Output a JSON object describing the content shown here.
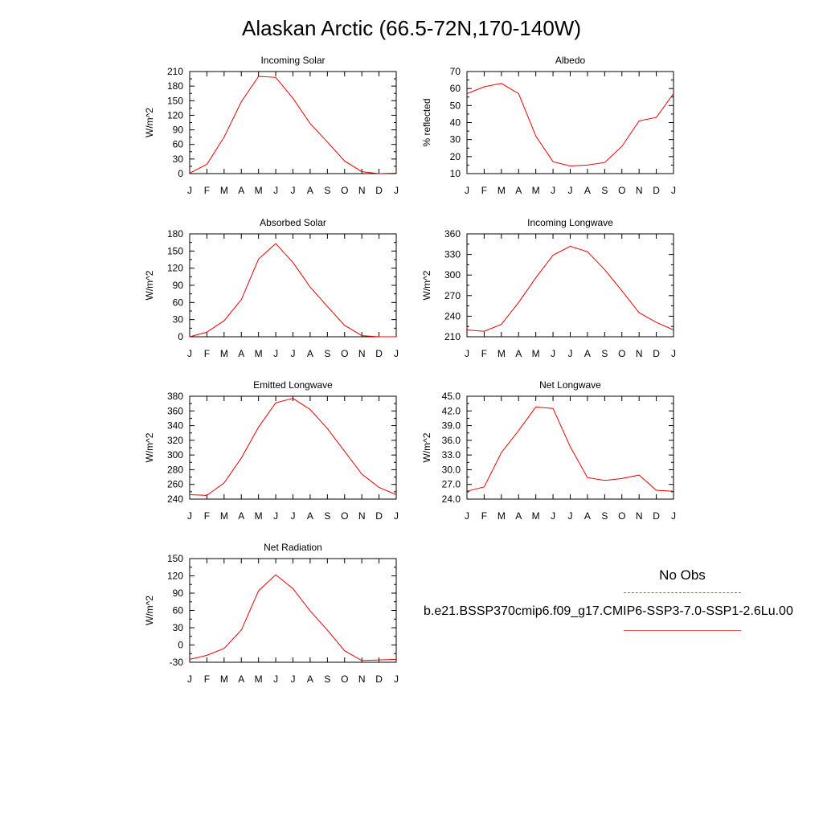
{
  "title": "Alaskan Arctic (66.5-72N,170-140W)",
  "legend": {
    "obs_label": "No Obs",
    "model_label": "b.e21.BSSP370cmip6.f09_g17.CMIP6-SSP3-7.0-SSP1-2.6Lu.00",
    "obs_color": "#6a6ae0",
    "model_color": "#ee0000"
  },
  "chart_data": [
    {
      "type": "line",
      "title": "Incoming Solar",
      "ylabel": "W/m^2",
      "categories": [
        "J",
        "F",
        "M",
        "A",
        "M",
        "J",
        "J",
        "A",
        "S",
        "O",
        "N",
        "D",
        "J"
      ],
      "ylim": [
        0,
        210
      ],
      "yticks": [
        "0",
        "30",
        "60",
        "90",
        "120",
        "150",
        "180",
        "210"
      ],
      "series": [
        {
          "values": [
            1,
            19,
            75,
            148,
            200,
            198,
            155,
            103,
            65,
            26,
            4,
            0,
            1
          ]
        }
      ]
    },
    {
      "type": "line",
      "title": "Albedo",
      "ylabel": "% reflected",
      "categories": [
        "J",
        "F",
        "M",
        "A",
        "M",
        "J",
        "J",
        "A",
        "S",
        "O",
        "N",
        "D",
        "J"
      ],
      "ylim": [
        10,
        70
      ],
      "yticks": [
        "10",
        "20",
        "30",
        "40",
        "50",
        "60",
        "70"
      ],
      "series": [
        {
          "values": [
            57,
            61,
            63,
            57,
            32,
            17,
            14.5,
            15,
            16.5,
            26,
            41,
            43,
            57
          ]
        }
      ]
    },
    {
      "type": "line",
      "title": "Absorbed Solar",
      "ylabel": "W/m^2",
      "categories": [
        "J",
        "F",
        "M",
        "A",
        "M",
        "J",
        "J",
        "A",
        "S",
        "O",
        "N",
        "D",
        "J"
      ],
      "ylim": [
        0,
        180
      ],
      "yticks": [
        "0",
        "30",
        "60",
        "90",
        "120",
        "150",
        "180"
      ],
      "series": [
        {
          "values": [
            0,
            8,
            28,
            65,
            136,
            163,
            130,
            87,
            53,
            20,
            2,
            0,
            0
          ]
        }
      ]
    },
    {
      "type": "line",
      "title": "Incoming Longwave",
      "ylabel": "W/m^2",
      "categories": [
        "J",
        "F",
        "M",
        "A",
        "M",
        "J",
        "J",
        "A",
        "S",
        "O",
        "N",
        "D",
        "J"
      ],
      "ylim": [
        210,
        360
      ],
      "yticks": [
        "210",
        "240",
        "270",
        "300",
        "330",
        "360"
      ],
      "series": [
        {
          "values": [
            220,
            218,
            228,
            260,
            296,
            329,
            342,
            334,
            308,
            277,
            245,
            231,
            220
          ]
        }
      ]
    },
    {
      "type": "line",
      "title": "Emitted Longwave",
      "ylabel": "W/m^2",
      "categories": [
        "J",
        "F",
        "M",
        "A",
        "M",
        "J",
        "J",
        "A",
        "S",
        "O",
        "N",
        "D",
        "J"
      ],
      "ylim": [
        240,
        380
      ],
      "yticks": [
        "240",
        "260",
        "280",
        "300",
        "320",
        "340",
        "360",
        "380"
      ],
      "series": [
        {
          "values": [
            246,
            245,
            262,
            296,
            338,
            371,
            377,
            362,
            336,
            305,
            274,
            256,
            246
          ]
        }
      ]
    },
    {
      "type": "line",
      "title": "Net Longwave",
      "ylabel": "W/m^2",
      "categories": [
        "J",
        "F",
        "M",
        "A",
        "M",
        "J",
        "J",
        "A",
        "S",
        "O",
        "N",
        "D",
        "J"
      ],
      "ylim": [
        24,
        45
      ],
      "yticks": [
        "24.0",
        "27.0",
        "30.0",
        "33.0",
        "36.0",
        "39.0",
        "42.0",
        "45.0"
      ],
      "series": [
        {
          "values": [
            25.6,
            26.5,
            33.5,
            38.0,
            42.8,
            42.5,
            34.7,
            28.4,
            27.8,
            28.2,
            28.9,
            25.8,
            25.6
          ]
        }
      ]
    },
    {
      "type": "line",
      "title": "Net Radiation",
      "ylabel": "W/m^2",
      "categories": [
        "J",
        "F",
        "M",
        "A",
        "M",
        "J",
        "J",
        "A",
        "S",
        "O",
        "N",
        "D",
        "J"
      ],
      "ylim": [
        -30,
        150
      ],
      "yticks": [
        "-30",
        "0",
        "30",
        "60",
        "90",
        "120",
        "150"
      ],
      "series": [
        {
          "values": [
            -25,
            -18,
            -6,
            26,
            94,
            122,
            98,
            59,
            26,
            -10,
            -27,
            -26,
            -25
          ]
        }
      ]
    }
  ]
}
